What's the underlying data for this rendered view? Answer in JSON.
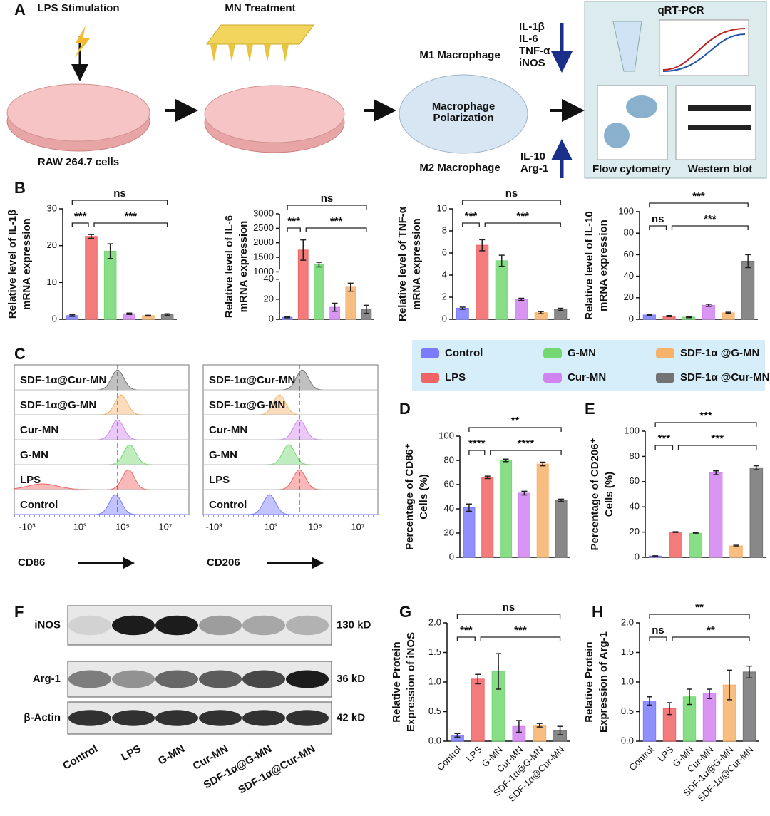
{
  "panel_labels": [
    "A",
    "B",
    "C",
    "D",
    "E",
    "F",
    "G",
    "H"
  ],
  "panel_a": {
    "steps": [
      "LPS Stimulation",
      "MN Treatment"
    ],
    "cells": "RAW 264.7 cells",
    "m1": "M1 Macrophage",
    "m2": "M2 Macrophage",
    "polarization": [
      "Macrophage",
      "Polarization"
    ],
    "m1_markers": [
      "IL-1β",
      "IL-6",
      "TNF-α",
      "iNOS"
    ],
    "m2_markers": [
      "IL-10",
      "Arg-1"
    ],
    "assays": [
      "qRT-PCR",
      "Flow cytometry",
      "Western blot"
    ]
  },
  "legend": {
    "items": [
      {
        "name": "Control",
        "color": "#7b7bff"
      },
      {
        "name": "LPS",
        "color": "#f26464"
      },
      {
        "name": "G-MN",
        "color": "#72d872"
      },
      {
        "name": "Cur-MN",
        "color": "#d184f0"
      },
      {
        "name": "SDF-1α @G-MN",
        "color": "#f7b26a"
      },
      {
        "name": "SDF-1α @Cur-MN",
        "color": "#737373"
      }
    ]
  },
  "panel_c": {
    "rows": [
      "SDF-1α@Cur-MN",
      "SDF-1α@G-MN",
      "Cur-MN",
      "G-MN",
      "LPS",
      "Control"
    ],
    "x_labels": [
      "CD86",
      "CD206"
    ],
    "x_tick_labels": [
      "-10³",
      "10³",
      "10⁵",
      "10⁷"
    ]
  },
  "panel_f": {
    "proteins": [
      "iNOS",
      "Arg-1",
      "β-Actin"
    ],
    "sizes": [
      "130 kD",
      "36 kD",
      "42 kD"
    ],
    "lanes": [
      "Control",
      "LPS",
      "G-MN",
      "Cur-MN",
      "SDF-1α@G-MN",
      "SDF-1α@Cur-MN"
    ]
  },
  "chart_data": [
    {
      "type": "bar",
      "y_label": [
        "Relative level of IL-1β",
        "mRNA expression"
      ],
      "values": [
        1,
        22.5,
        18.5,
        1.5,
        1,
        1.3
      ],
      "errors": [
        0.2,
        0.5,
        2,
        0.2,
        0.1,
        0.2
      ],
      "colors": [
        "#7b7bff",
        "#f26464",
        "#72d872",
        "#d184f0",
        "#f7b26a",
        "#737373"
      ],
      "ylim": [
        0,
        30
      ],
      "yticks": [
        0,
        10,
        20,
        30
      ],
      "significance": [
        "***",
        "***",
        "ns"
      ]
    },
    {
      "type": "bar",
      "y_label": [
        "Relative level of IL-6",
        "mRNA expression"
      ],
      "values": [
        2,
        1750,
        1250,
        12,
        32,
        10
      ],
      "errors": [
        0.5,
        350,
        80,
        4,
        4,
        4
      ],
      "colors": [
        "#7b7bff",
        "#f26464",
        "#72d872",
        "#d184f0",
        "#f7b26a",
        "#737373"
      ],
      "ylim": [
        0,
        3000
      ],
      "ybreak": [
        40,
        1000
      ],
      "yticks": [
        0,
        20,
        40,
        1000,
        1500,
        2000,
        2500,
        3000
      ],
      "significance": [
        "***",
        "***",
        "ns"
      ]
    },
    {
      "type": "bar",
      "y_label": [
        "Relative level of TNF-α",
        "mRNA expression"
      ],
      "values": [
        1,
        6.7,
        5.3,
        1.8,
        0.6,
        0.9
      ],
      "errors": [
        0.1,
        0.5,
        0.5,
        0.1,
        0.1,
        0.1
      ],
      "colors": [
        "#7b7bff",
        "#f26464",
        "#72d872",
        "#d184f0",
        "#f7b26a",
        "#737373"
      ],
      "ylim": [
        0,
        10
      ],
      "yticks": [
        0,
        2,
        4,
        6,
        8,
        10
      ],
      "significance": [
        "***",
        "***",
        "ns"
      ]
    },
    {
      "type": "bar",
      "y_label": [
        "Relative level of IL-10",
        "mRNA expression"
      ],
      "values": [
        4,
        3,
        2,
        13,
        6,
        54
      ],
      "errors": [
        0.5,
        0.5,
        0.5,
        1,
        0.5,
        6
      ],
      "colors": [
        "#7b7bff",
        "#f26464",
        "#72d872",
        "#d184f0",
        "#f7b26a",
        "#737373"
      ],
      "ylim": [
        0,
        100
      ],
      "yticks": [
        0,
        20,
        40,
        60,
        80,
        100
      ],
      "significance": [
        "ns",
        "***",
        "***"
      ]
    },
    {
      "type": "bar",
      "y_label": [
        "Percentage of CD86⁺",
        "Cells (%)"
      ],
      "values": [
        41,
        66,
        80,
        53,
        77,
        47
      ],
      "errors": [
        3,
        1,
        1,
        1.5,
        1.5,
        1
      ],
      "colors": [
        "#7b7bff",
        "#f26464",
        "#72d872",
        "#d184f0",
        "#f7b26a",
        "#737373"
      ],
      "ylim": [
        0,
        100
      ],
      "yticks": [
        0,
        20,
        40,
        60,
        80,
        100
      ],
      "significance": [
        "****",
        "****",
        "**"
      ]
    },
    {
      "type": "bar",
      "y_label": [
        "Percentage of CD206⁺",
        "Cells (%)"
      ],
      "values": [
        1,
        20,
        19,
        67,
        9,
        71
      ],
      "errors": [
        0.2,
        0.3,
        0.5,
        1.5,
        0.5,
        1.5
      ],
      "colors": [
        "#7b7bff",
        "#f26464",
        "#72d872",
        "#d184f0",
        "#f7b26a",
        "#737373"
      ],
      "ylim": [
        0,
        100
      ],
      "yticks": [
        0,
        20,
        40,
        60,
        80,
        100
      ],
      "significance": [
        "***",
        "***",
        "***"
      ]
    },
    {
      "type": "bar",
      "y_label": [
        "Relative Protein",
        "Expression of iNOS"
      ],
      "categories": [
        "Control",
        "LPS",
        "G-MN",
        "Cur-MN",
        "SDF-1α@G-MN",
        "SDF-1α@Cur-MN"
      ],
      "values": [
        0.1,
        1.05,
        1.18,
        0.25,
        0.27,
        0.18
      ],
      "errors": [
        0.03,
        0.08,
        0.3,
        0.1,
        0.03,
        0.07
      ],
      "colors": [
        "#7b7bff",
        "#f26464",
        "#72d872",
        "#d184f0",
        "#f7b26a",
        "#737373"
      ],
      "ylim": [
        0,
        2
      ],
      "yticks": [
        {
          "value": 0,
          "label": "0.0"
        },
        0.5,
        {
          "value": 1,
          "label": "1.0"
        },
        1.5,
        {
          "value": 2,
          "label": "2.0"
        }
      ],
      "significance": [
        "***",
        "***",
        "ns"
      ]
    },
    {
      "type": "bar",
      "y_label": [
        "Relative Protein",
        "Expression of Arg-1"
      ],
      "categories": [
        "Control",
        "LPS",
        "G-MN",
        "Cur-MN",
        "SDF-1α@G-MN",
        "SDF-1α@Cur-MN"
      ],
      "values": [
        0.68,
        0.55,
        0.75,
        0.8,
        0.95,
        1.17
      ],
      "errors": [
        0.07,
        0.1,
        0.13,
        0.08,
        0.25,
        0.1
      ],
      "colors": [
        "#7b7bff",
        "#f26464",
        "#72d872",
        "#d184f0",
        "#f7b26a",
        "#737373"
      ],
      "ylim": [
        0,
        2
      ],
      "yticks": [
        {
          "value": 0,
          "label": "0.0"
        },
        0.5,
        {
          "value": 1,
          "label": "1.0"
        },
        1.5,
        {
          "value": 2,
          "label": "2.0"
        }
      ],
      "significance": [
        "ns",
        "**",
        "**"
      ]
    }
  ]
}
